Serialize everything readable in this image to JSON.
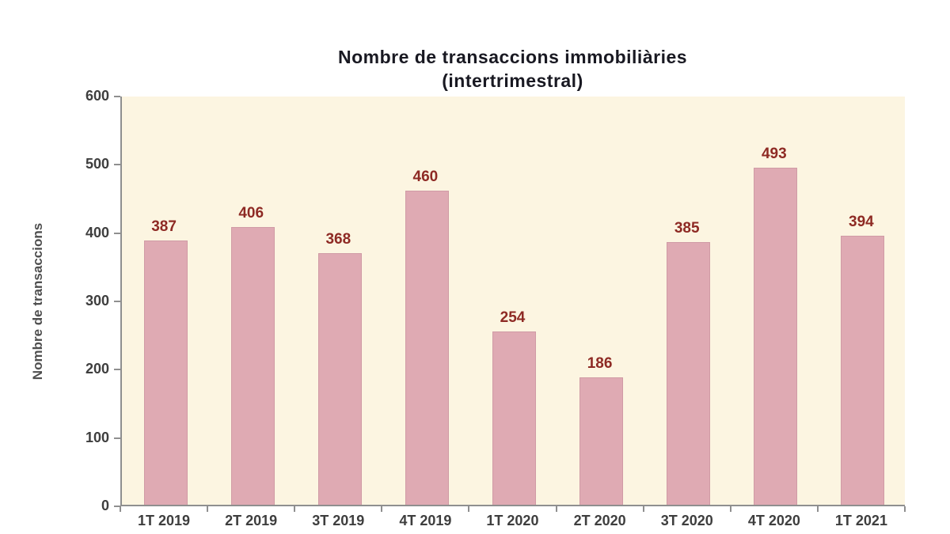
{
  "chart_data": {
    "type": "bar",
    "title_line1": "Nombre de transaccions immobiliàries",
    "title_line2": "(intertrimestral)",
    "ylabel": "Nombre de transaccions",
    "xlabel": "",
    "categories": [
      "1T 2019",
      "2T 2019",
      "3T 2019",
      "4T 2019",
      "1T 2020",
      "2T 2020",
      "3T 2020",
      "4T 2020",
      "1T 2021"
    ],
    "values": [
      387,
      406,
      368,
      460,
      254,
      186,
      385,
      493,
      394
    ],
    "ylim": [
      0,
      600
    ],
    "ytick_step": 100,
    "ytick_labels": [
      "0",
      "100",
      "200",
      "300",
      "400",
      "500",
      "600"
    ],
    "grid": false,
    "legend": "none",
    "data_labels_shown": true
  },
  "colors": {
    "bar_fill": "#dfaab3",
    "bar_border": "#d09ba5",
    "plot_bg": "#fcf5e1",
    "value_label": "#8e2a24",
    "title": "#191922",
    "axis": "#8f8f8f",
    "tick_label": "#3e3e3e",
    "ylabel": "#4f4f4f",
    "page_bg": "#ffffff"
  }
}
